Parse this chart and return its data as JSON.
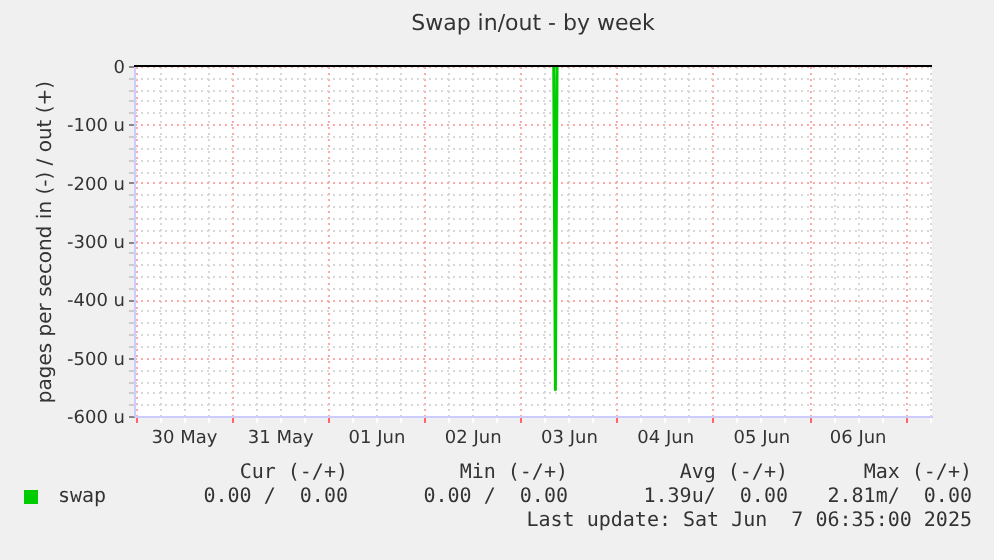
{
  "chart_data": {
    "type": "line",
    "title": "Swap in/out - by week",
    "ylabel": "pages per second in (-) / out (+)",
    "x": [
      "2025-06-03T08:20",
      "2025-06-03T08:45",
      "2025-06-03T09:10"
    ],
    "series": [
      {
        "name": "swap",
        "color": "#00cc00",
        "values": [
          0,
          -555,
          0
        ]
      }
    ],
    "xlim": [
      "2025-05-29T23:40",
      "2025-06-07T06:40"
    ],
    "xticks": [
      {
        "value": "2025-05-30T00:00",
        "label": null
      },
      {
        "value": "2025-05-30T06:00",
        "label": null
      },
      {
        "value": "2025-05-30T12:00",
        "label": "30 May"
      },
      {
        "value": "2025-05-30T18:00",
        "label": null
      },
      {
        "value": "2025-05-31T00:00",
        "label": null
      },
      {
        "value": "2025-05-31T06:00",
        "label": null
      },
      {
        "value": "2025-05-31T12:00",
        "label": "31 May"
      },
      {
        "value": "2025-05-31T18:00",
        "label": null
      },
      {
        "value": "2025-06-01T00:00",
        "label": null
      },
      {
        "value": "2025-06-01T06:00",
        "label": null
      },
      {
        "value": "2025-06-01T12:00",
        "label": "01 Jun"
      },
      {
        "value": "2025-06-01T18:00",
        "label": null
      },
      {
        "value": "2025-06-02T00:00",
        "label": null
      },
      {
        "value": "2025-06-02T06:00",
        "label": null
      },
      {
        "value": "2025-06-02T12:00",
        "label": "02 Jun"
      },
      {
        "value": "2025-06-02T18:00",
        "label": null
      },
      {
        "value": "2025-06-03T00:00",
        "label": null
      },
      {
        "value": "2025-06-03T06:00",
        "label": null
      },
      {
        "value": "2025-06-03T12:00",
        "label": "03 Jun"
      },
      {
        "value": "2025-06-03T18:00",
        "label": null
      },
      {
        "value": "2025-06-04T00:00",
        "label": null
      },
      {
        "value": "2025-06-04T06:00",
        "label": null
      },
      {
        "value": "2025-06-04T12:00",
        "label": "04 Jun"
      },
      {
        "value": "2025-06-04T18:00",
        "label": null
      },
      {
        "value": "2025-06-05T00:00",
        "label": null
      },
      {
        "value": "2025-06-05T06:00",
        "label": null
      },
      {
        "value": "2025-06-05T12:00",
        "label": "05 Jun"
      },
      {
        "value": "2025-06-05T18:00",
        "label": null
      },
      {
        "value": "2025-06-06T00:00",
        "label": null
      },
      {
        "value": "2025-06-06T06:00",
        "label": null
      },
      {
        "value": "2025-06-06T12:00",
        "label": "06 Jun"
      },
      {
        "value": "2025-06-06T18:00",
        "label": null
      },
      {
        "value": "2025-06-07T00:00",
        "label": null
      },
      {
        "value": "2025-06-07T06:00",
        "label": null
      }
    ],
    "ylim": [
      -600,
      0
    ],
    "yticks": [
      {
        "value": -600,
        "label": "-600 u"
      },
      {
        "value": -580,
        "label": null
      },
      {
        "value": -560,
        "label": null
      },
      {
        "value": -540,
        "label": null
      },
      {
        "value": -520,
        "label": null
      },
      {
        "value": -500,
        "label": "-500 u"
      },
      {
        "value": -480,
        "label": null
      },
      {
        "value": -460,
        "label": null
      },
      {
        "value": -440,
        "label": null
      },
      {
        "value": -420,
        "label": null
      },
      {
        "value": -400,
        "label": "-400 u"
      },
      {
        "value": -380,
        "label": null
      },
      {
        "value": -360,
        "label": null
      },
      {
        "value": -340,
        "label": null
      },
      {
        "value": -320,
        "label": null
      },
      {
        "value": -300,
        "label": "-300 u"
      },
      {
        "value": -280,
        "label": null
      },
      {
        "value": -260,
        "label": null
      },
      {
        "value": -240,
        "label": null
      },
      {
        "value": -220,
        "label": null
      },
      {
        "value": -200,
        "label": "-200 u"
      },
      {
        "value": -180,
        "label": null
      },
      {
        "value": -160,
        "label": null
      },
      {
        "value": -140,
        "label": null
      },
      {
        "value": -120,
        "label": null
      },
      {
        "value": -100,
        "label": "-100 u"
      },
      {
        "value": -80,
        "label": null
      },
      {
        "value": -60,
        "label": null
      },
      {
        "value": -40,
        "label": null
      },
      {
        "value": -20,
        "label": null
      },
      {
        "value": 0,
        "label": "0"
      }
    ],
    "ref_lines": [
      {
        "axis": "y",
        "value": 0,
        "color": "#000000"
      }
    ],
    "grid": true,
    "legend": "bottom",
    "marker": "none",
    "line_style": "solid",
    "annotations": [
      "Cur (-/+)",
      "Min (-/+)",
      "Avg (-/+)",
      "Max (-/+)",
      "0.00 /  0.00",
      "0.00 /  0.00",
      "1.39u/  0.00",
      "2.81m/  0.00",
      "Last update: Sat Jun  7 06:35:00 2025"
    ]
  }
}
